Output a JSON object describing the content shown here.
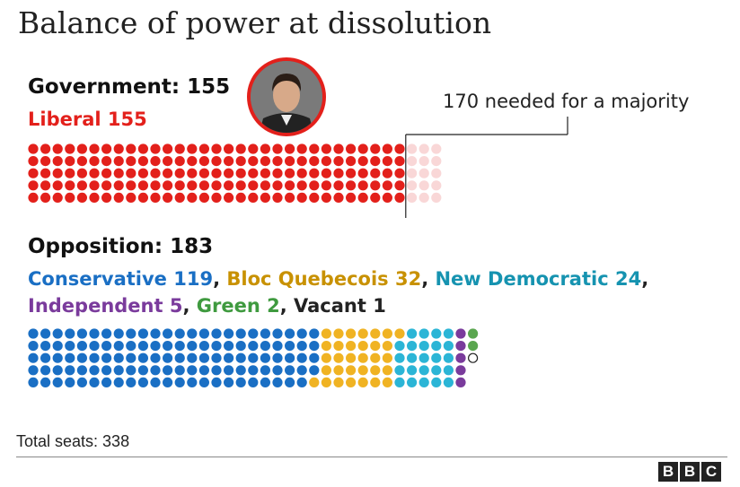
{
  "title": "Balance of power at dissolution",
  "government": {
    "heading": "Government: 155",
    "parties": [
      {
        "name": "Liberal",
        "label": "Liberal 155",
        "seats": 155,
        "color": "#e3201b"
      }
    ]
  },
  "majority_note": "170 needed for a majority",
  "opposition": {
    "heading": "Opposition: 183",
    "line1": [
      {
        "label": "Conservative 119",
        "color": "#1a6fc4"
      },
      {
        "label": ", ",
        "color": "#222222"
      },
      {
        "label": "Bloc Quebecois 32",
        "color": "#c89100"
      },
      {
        "label": ", ",
        "color": "#222222"
      },
      {
        "label": "New Democratic 24",
        "color": "#1693b0"
      },
      {
        "label": ",",
        "color": "#222222"
      }
    ],
    "line2": [
      {
        "label": "Independent 5",
        "color": "#7a3b9c"
      },
      {
        "label": ", ",
        "color": "#222222"
      },
      {
        "label": "Green 2",
        "color": "#3f9a3f"
      },
      {
        "label": ", ",
        "color": "#222222"
      },
      {
        "label": "Vacant 1",
        "color": "#222222"
      }
    ]
  },
  "total_label": "Total seats: 338",
  "source_logo": [
    "B",
    "B",
    "C"
  ],
  "chart_data": {
    "type": "waffle",
    "title": "Balance of power at dissolution",
    "total_seats": 338,
    "majority_threshold": 170,
    "groups": [
      {
        "name": "Government",
        "total": 155,
        "series": [
          {
            "name": "Liberal",
            "values": [
              155
            ],
            "color": "#e3201b"
          },
          {
            "name": "needed for a majority",
            "values": [
              15
            ],
            "color": "#f9d7d7"
          }
        ]
      },
      {
        "name": "Opposition",
        "total": 183,
        "series": [
          {
            "name": "Conservative",
            "values": [
              119
            ],
            "color": "#1a6fc4"
          },
          {
            "name": "Bloc Quebecois",
            "values": [
              32
            ],
            "color": "#f0b323"
          },
          {
            "name": "New Democratic",
            "values": [
              24
            ],
            "color": "#2bb5d6"
          },
          {
            "name": "Independent",
            "values": [
              5
            ],
            "color": "#7a3b9c"
          },
          {
            "name": "Green",
            "values": [
              2
            ],
            "color": "#5aa64f"
          },
          {
            "name": "Vacant",
            "values": [
              1
            ],
            "color": "#ffffff"
          }
        ]
      }
    ]
  }
}
